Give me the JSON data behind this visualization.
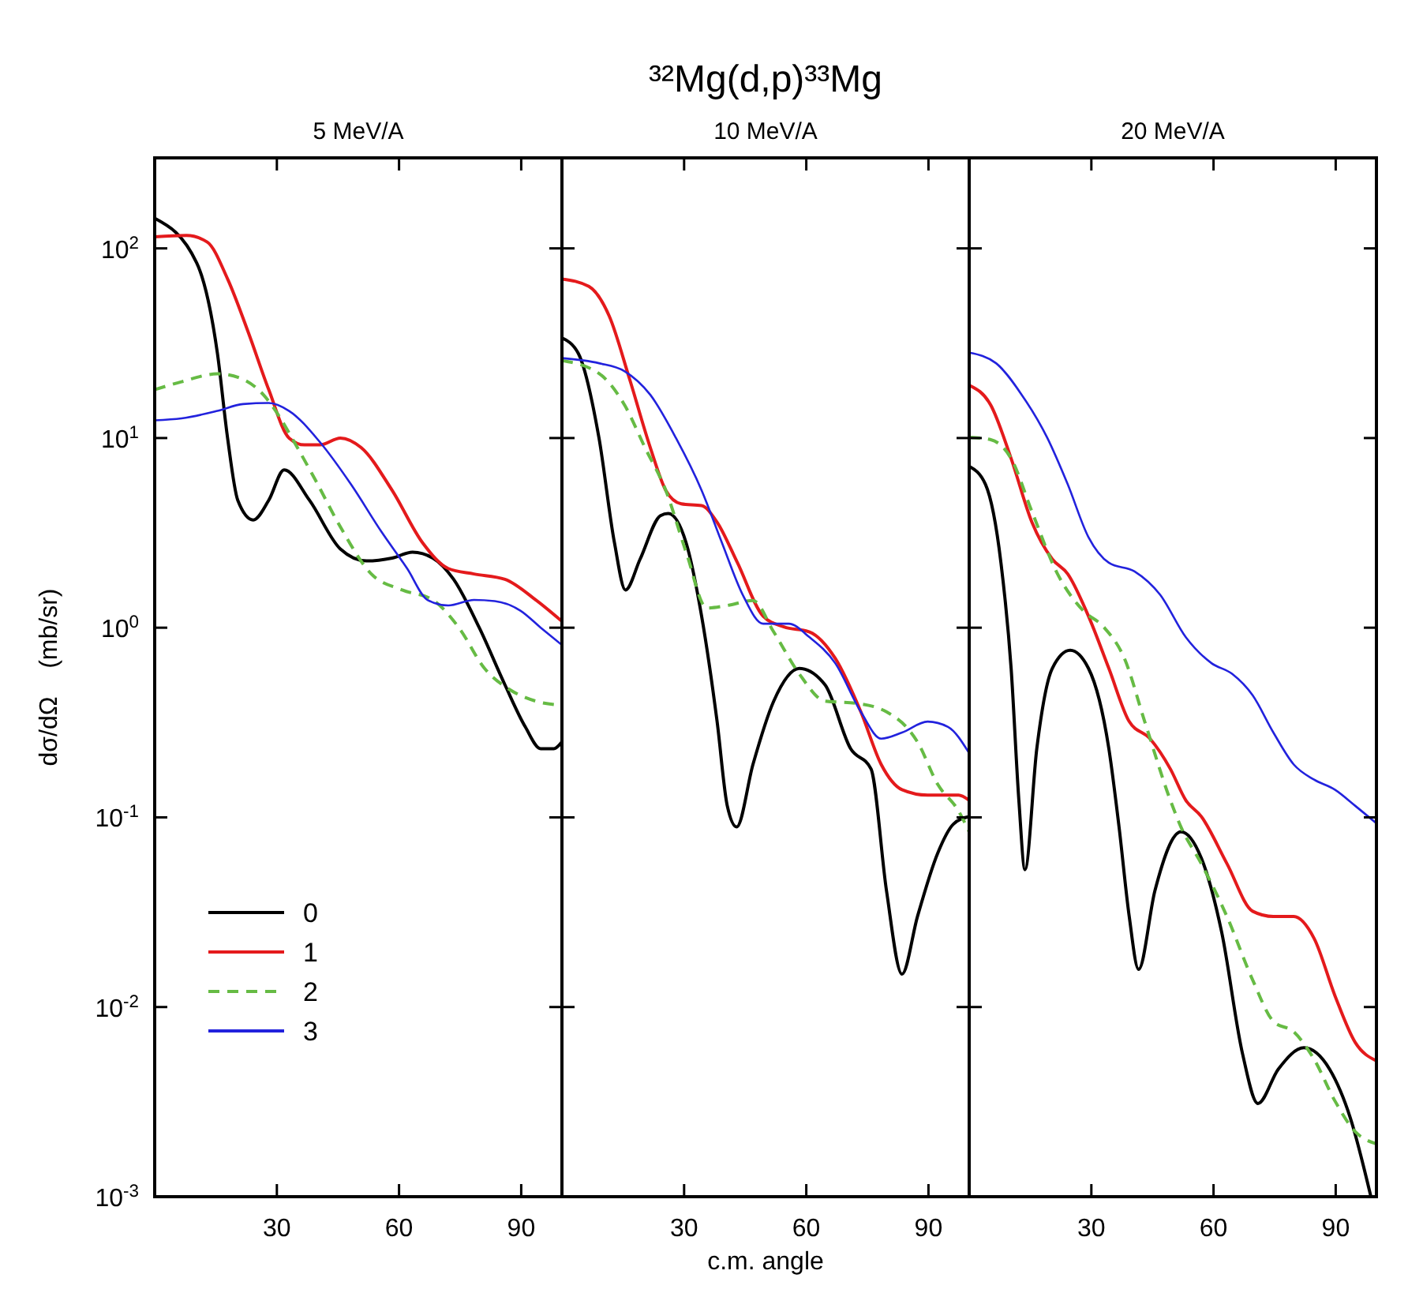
{
  "chart_data": [
    {
      "type": "line",
      "subtitle": "5 MeV/A",
      "ylabel": "dσ/dΩ    (mb/sr)",
      "xlim": [
        0,
        100
      ],
      "xticks": [
        30,
        60,
        90
      ],
      "ylim": [
        0.001,
        300
      ],
      "log": true,
      "legend": "bottom left",
      "yticks": [
        {
          "value": 0.001,
          "label": "10$^{-3}$"
        },
        {
          "value": 0.01,
          "label": "10$^{-2}$"
        },
        {
          "value": 0.1,
          "label": "10$^{-1}$"
        },
        {
          "value": 1,
          "label": "10$^{0}$"
        },
        {
          "value": 10,
          "label": "10$^{1}$"
        },
        {
          "value": 100,
          "label": "10$^{2}$"
        }
      ],
      "series": [
        {
          "name": "0",
          "color": "#000000",
          "x": [
            0,
            10.3,
            15.4,
            17.9,
            20.4,
            24.2,
            28,
            31.8,
            38,
            45.6,
            52,
            58.3,
            63.3,
            68.3,
            73.4,
            79.7,
            86,
            91,
            94.8,
            98,
            100
          ],
          "values": [
            144,
            84,
            28,
            10,
            4.7,
            3.7,
            4.7,
            6.8,
            4.7,
            2.6,
            2.25,
            2.33,
            2.5,
            2.33,
            1.8,
            1.0,
            0.5,
            0.3,
            0.23,
            0.23,
            0.25
          ]
        },
        {
          "name": "1",
          "color": "#e41a1c",
          "x": [
            0,
            7.8,
            12.9,
            17.9,
            23,
            28,
            33,
            36.8,
            40.6,
            45.6,
            50.7,
            58.3,
            65.8,
            72.1,
            78.4,
            86,
            93.6,
            100
          ],
          "values": [
            115,
            117,
            108,
            69,
            36,
            18,
            10,
            9.2,
            9.2,
            10,
            8.9,
            5.3,
            2.8,
            2.05,
            1.92,
            1.8,
            1.4,
            1.08
          ]
        },
        {
          "name": "2",
          "color": "#66bb44",
          "line_style": "dashed",
          "x": [
            0,
            6.6,
            15.4,
            21.7,
            26.7,
            30.5,
            34.3,
            39.3,
            45.6,
            53.2,
            60.8,
            68.3,
            74.7,
            81,
            87.3,
            93.6,
            100
          ],
          "values": [
            18,
            19.8,
            21.8,
            20.4,
            16.9,
            13.1,
            9.5,
            6.1,
            3.4,
            1.92,
            1.58,
            1.4,
            1.0,
            0.61,
            0.47,
            0.41,
            0.39
          ]
        },
        {
          "name": "3",
          "color": "#2222dd",
          "x": [
            0,
            6.6,
            15.4,
            21.7,
            28,
            33,
            40.6,
            48.2,
            55.7,
            62,
            67,
            72.1,
            78.4,
            83.5,
            89.8,
            94.8,
            100
          ],
          "values": [
            12.4,
            12.7,
            13.9,
            15.1,
            15.3,
            13.9,
            9.5,
            5.7,
            3.2,
            2.05,
            1.4,
            1.31,
            1.4,
            1.38,
            1.23,
            1.0,
            0.81
          ]
        }
      ]
    },
    {
      "type": "line",
      "title": "³²Mg(d,p)³³Mg",
      "subtitle": "10 MeV/A",
      "xlabel": "c.m. angle",
      "xlim": [
        0,
        100
      ],
      "xticks": [
        30,
        60,
        90
      ],
      "ylim": [
        0.001,
        300
      ],
      "log": true,
      "tick_labels": "x",
      "yticks": [
        {
          "value": 0.001,
          "label": null
        },
        {
          "value": 0.01,
          "label": null
        },
        {
          "value": 0.1,
          "label": null
        },
        {
          "value": 1,
          "label": null
        },
        {
          "value": 10,
          "label": null
        },
        {
          "value": 100,
          "label": null
        }
      ],
      "series": [
        {
          "color": "#000000",
          "x": [
            0,
            4,
            9.1,
            12.9,
            15.6,
            19.2,
            24.2,
            26.1,
            30.5,
            34.3,
            38.1,
            40.6,
            42.9,
            46.9,
            52,
            58.3,
            64.6,
            70.9,
            75.9,
            79.7,
            83.5,
            87.3,
            92.3,
            96.1,
            100
          ],
          "values": [
            33.7,
            28,
            10,
            2.8,
            1.58,
            2.3,
            3.9,
            4.0,
            2.8,
            1.15,
            0.32,
            0.115,
            0.089,
            0.19,
            0.41,
            0.61,
            0.5,
            0.23,
            0.18,
            0.041,
            0.0149,
            0.03,
            0.065,
            0.092,
            0.101
          ]
        },
        {
          "color": "#e41a1c",
          "x": [
            0,
            6.6,
            11.6,
            16.6,
            21.7,
            25.5,
            29.3,
            34.3,
            38.1,
            43.1,
            49.4,
            54.5,
            60.8,
            67.1,
            73.4,
            78.4,
            83.5,
            89.8,
            97.4,
            100
          ],
          "values": [
            69,
            63,
            44,
            20.5,
            8.9,
            5.3,
            4.5,
            4.4,
            3.6,
            2.2,
            1.15,
            1.01,
            0.95,
            0.69,
            0.36,
            0.19,
            0.14,
            0.131,
            0.131,
            0.123
          ]
        },
        {
          "color": "#66bb44",
          "line_style": "dashed",
          "x": [
            0,
            9.1,
            15.4,
            20.4,
            25.5,
            30.5,
            35.6,
            40.6,
            46.9,
            52,
            58.3,
            64.6,
            72.1,
            79.7,
            87.3,
            92.3,
            97.4,
            100
          ],
          "values": [
            25.6,
            21.9,
            14.9,
            8.9,
            5.3,
            2.5,
            1.27,
            1.31,
            1.39,
            0.95,
            0.57,
            0.41,
            0.4,
            0.36,
            0.25,
            0.149,
            0.108,
            0.084
          ]
        },
        {
          "color": "#2222dd",
          "x": [
            0,
            9.1,
            15.4,
            21.7,
            28,
            34.3,
            39.3,
            44.4,
            49.4,
            55.7,
            60.8,
            67.1,
            73.4,
            78.4,
            83.5,
            89.8,
            94.8,
            100
          ],
          "values": [
            26.4,
            24.8,
            22.5,
            16.9,
            10,
            5.3,
            2.8,
            1.49,
            1.05,
            1.05,
            0.89,
            0.65,
            0.36,
            0.26,
            0.28,
            0.32,
            0.3,
            0.218
          ]
        }
      ]
    },
    {
      "type": "line",
      "subtitle": "20 MeV/A",
      "xlim": [
        0,
        100
      ],
      "xticks": [
        30,
        60,
        90
      ],
      "ylim": [
        0.001,
        300
      ],
      "log": true,
      "tick_labels": "x",
      "yticks": [
        {
          "value": 0.001,
          "label": null
        },
        {
          "value": 0.01,
          "label": null
        },
        {
          "value": 0.1,
          "label": null
        },
        {
          "value": 1,
          "label": null
        },
        {
          "value": 10,
          "label": null
        },
        {
          "value": 100,
          "label": null
        }
      ],
      "series": [
        {
          "color": "#000000",
          "x": [
            0,
            4,
            7.8,
            10.3,
            12.2,
            13.7,
            16.6,
            20.4,
            24.8,
            29.3,
            34.3,
            36.8,
            39.3,
            41.6,
            45.6,
            52,
            57,
            62,
            67.1,
            70.9,
            75.9,
            82.2,
            88.5,
            93.6,
            98.6
          ],
          "values": [
            7.1,
            5.7,
            2.2,
            0.61,
            0.123,
            0.053,
            0.23,
            0.61,
            0.76,
            0.61,
            0.23,
            0.089,
            0.03,
            0.0158,
            0.041,
            0.084,
            0.061,
            0.0248,
            0.0057,
            0.0031,
            0.0047,
            0.0061,
            0.0047,
            0.0026,
            0.00101
          ]
        },
        {
          "color": "#e41a1c",
          "x": [
            0,
            5.3,
            10.3,
            15.4,
            20.4,
            24.2,
            29.3,
            34.3,
            39.3,
            44.4,
            49.4,
            53.2,
            57,
            63.3,
            69.6,
            74.7,
            79.7,
            84.7,
            89.8,
            94.8,
            100
          ],
          "values": [
            19,
            14.9,
            7.8,
            3.6,
            2.3,
            1.92,
            1.15,
            0.61,
            0.32,
            0.26,
            0.18,
            0.123,
            0.101,
            0.057,
            0.032,
            0.03,
            0.03,
            0.023,
            0.0115,
            0.0065,
            0.0052
          ]
        },
        {
          "color": "#66bb44",
          "line_style": "dashed",
          "x": [
            0,
            5.3,
            10.3,
            15.4,
            21.7,
            28,
            33,
            38.1,
            43.1,
            49.4,
            52,
            57,
            63.3,
            69.6,
            74.7,
            79.7,
            84.7,
            89.8,
            94.8,
            100
          ],
          "values": [
            10.1,
            9.8,
            7.8,
            4.1,
            1.92,
            1.23,
            1.01,
            0.69,
            0.32,
            0.123,
            0.089,
            0.057,
            0.03,
            0.0139,
            0.0084,
            0.0074,
            0.0053,
            0.0032,
            0.0022,
            0.0019
          ]
        },
        {
          "color": "#2222dd",
          "x": [
            0,
            6.6,
            12.9,
            19.2,
            24.2,
            29.3,
            34.3,
            40.6,
            46.9,
            53.2,
            59.5,
            64.6,
            69.6,
            74.7,
            79.7,
            84.7,
            89.8,
            94.8,
            100
          ],
          "values": [
            28.2,
            24.8,
            16.9,
            10,
            5.7,
            3.0,
            2.2,
            1.98,
            1.49,
            0.89,
            0.65,
            0.57,
            0.44,
            0.28,
            0.19,
            0.158,
            0.14,
            0.115,
            0.093
          ]
        }
      ]
    }
  ]
}
